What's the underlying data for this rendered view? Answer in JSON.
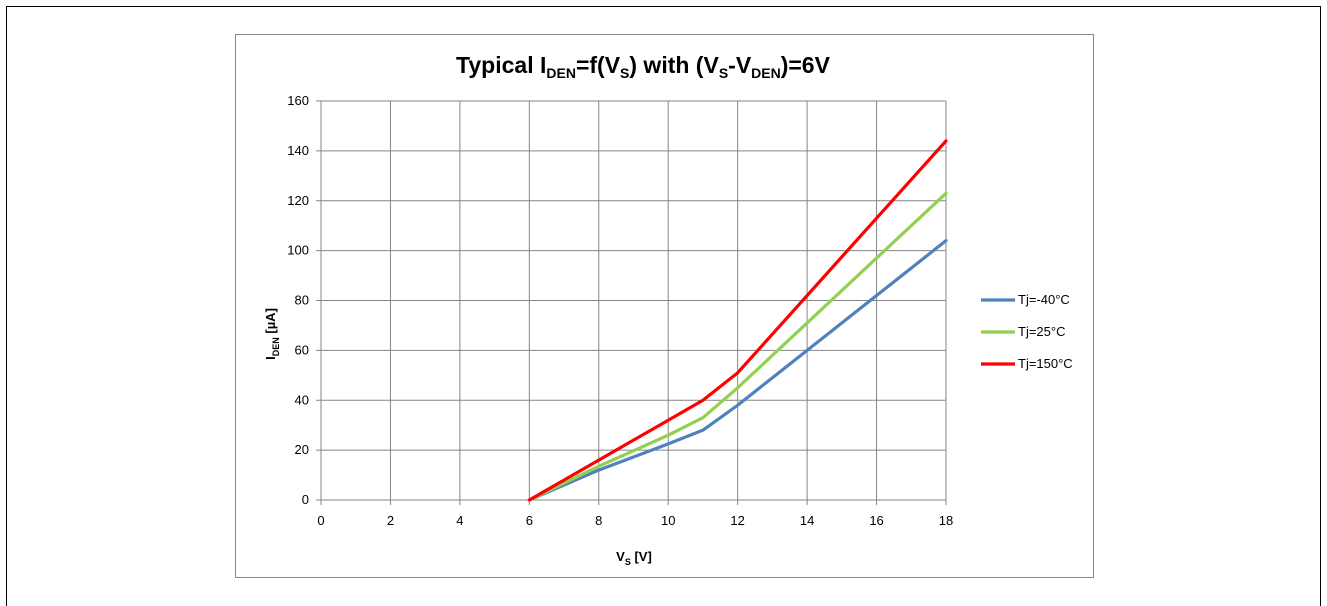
{
  "chart_data": {
    "type": "line",
    "title": {
      "parts": [
        "Typical I",
        "DEN",
        "=f(V",
        "S",
        ") with (V",
        "S",
        "-V",
        "DEN",
        ")=6V"
      ]
    },
    "xlabel": {
      "main": "V",
      "sub": "S",
      "rest": " [V]"
    },
    "ylabel": {
      "main": "I",
      "sub": "DEN",
      "rest": " [µA]"
    },
    "xlim": [
      0,
      18
    ],
    "ylim": [
      0,
      160
    ],
    "xticks": [
      0,
      2,
      4,
      6,
      8,
      10,
      12,
      14,
      16,
      18
    ],
    "yticks": [
      0,
      20,
      40,
      60,
      80,
      100,
      120,
      140,
      160
    ],
    "grid": true,
    "legend_position": "right",
    "series": [
      {
        "name": "Tj=-40°C",
        "color": "#4f81bd",
        "x": [
          6,
          8,
          10,
          11,
          12,
          14,
          16,
          18
        ],
        "y": [
          0,
          12,
          22.5,
          28,
          38,
          60,
          82,
          104
        ]
      },
      {
        "name": "Tj=25°C",
        "color": "#92d050",
        "x": [
          6,
          8,
          10,
          11,
          12,
          14,
          16,
          18
        ],
        "y": [
          0,
          13.5,
          26,
          33,
          45,
          71,
          97,
          123
        ]
      },
      {
        "name": "Tj=150°C",
        "color": "#ff0000",
        "x": [
          6,
          8,
          10,
          11,
          12,
          14,
          16,
          18
        ],
        "y": [
          0,
          16,
          32,
          40,
          51,
          82,
          113,
          144
        ]
      }
    ]
  }
}
